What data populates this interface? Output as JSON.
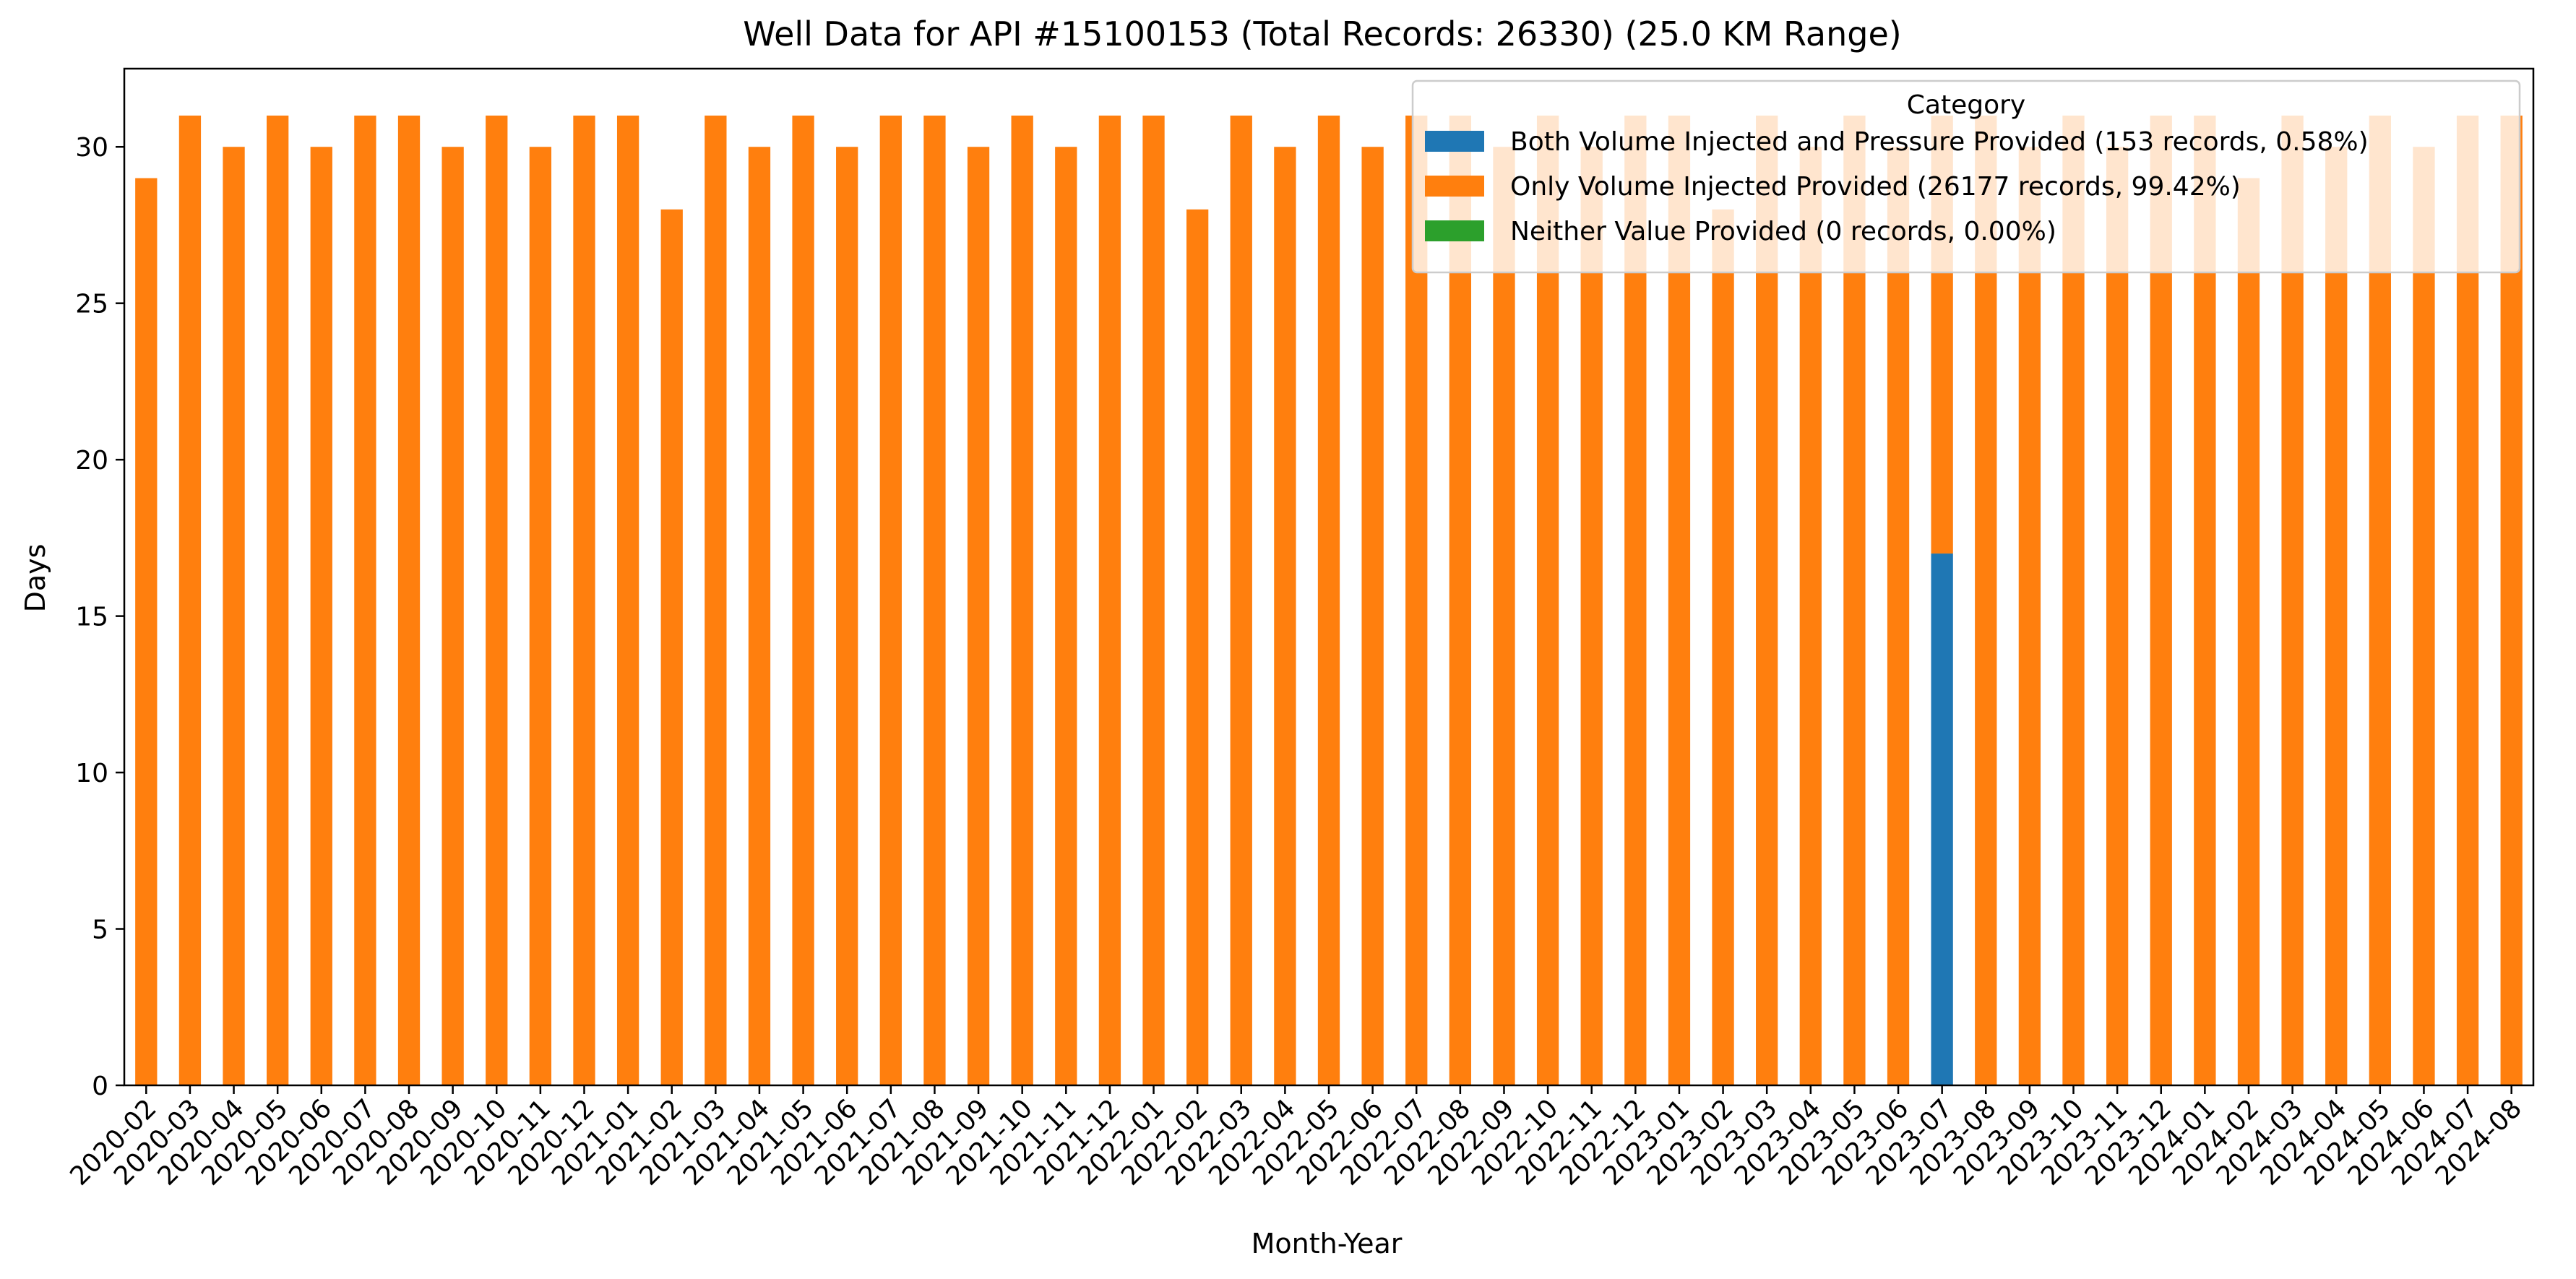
{
  "chart_data": {
    "type": "bar",
    "stacked": true,
    "title": "Well Data for API #15100153 (Total Records: 26330) (25.0 KM Range)",
    "xlabel": "Month-Year",
    "ylabel": "Days",
    "ylim": [
      0,
      32.5
    ],
    "yticks": [
      0,
      5,
      10,
      15,
      20,
      25,
      30
    ],
    "grid": false,
    "legend": {
      "title": "Category",
      "placement": "top-right"
    },
    "categories": [
      "2020-02",
      "2020-03",
      "2020-04",
      "2020-05",
      "2020-06",
      "2020-07",
      "2020-08",
      "2020-09",
      "2020-10",
      "2020-11",
      "2020-12",
      "2021-01",
      "2021-02",
      "2021-03",
      "2021-04",
      "2021-05",
      "2021-06",
      "2021-07",
      "2021-08",
      "2021-09",
      "2021-10",
      "2021-11",
      "2021-12",
      "2022-01",
      "2022-02",
      "2022-03",
      "2022-04",
      "2022-05",
      "2022-06",
      "2022-07",
      "2022-08",
      "2022-09",
      "2022-10",
      "2022-11",
      "2022-12",
      "2023-01",
      "2023-02",
      "2023-03",
      "2023-04",
      "2023-05",
      "2023-06",
      "2023-07",
      "2023-08",
      "2023-09",
      "2023-10",
      "2023-11",
      "2023-12",
      "2024-01",
      "2024-02",
      "2024-03",
      "2024-04",
      "2024-05",
      "2024-06",
      "2024-07",
      "2024-08"
    ],
    "series": [
      {
        "name": "Both Volume Injected and Pressure Provided (153 records, 0.58%)",
        "color": "#1f77b4",
        "values": [
          0,
          0,
          0,
          0,
          0,
          0,
          0,
          0,
          0,
          0,
          0,
          0,
          0,
          0,
          0,
          0,
          0,
          0,
          0,
          0,
          0,
          0,
          0,
          0,
          0,
          0,
          0,
          0,
          0,
          0,
          0,
          0,
          0,
          0,
          0,
          0,
          0,
          0,
          0,
          0,
          0,
          17,
          0,
          0,
          0,
          0,
          0,
          0,
          0,
          0,
          0,
          0,
          0,
          0,
          0
        ]
      },
      {
        "name": "Only Volume Injected Provided (26177 records, 99.42%)",
        "color": "#ff7f0e",
        "values": [
          29,
          31,
          30,
          31,
          30,
          31,
          31,
          30,
          31,
          30,
          31,
          31,
          28,
          31,
          30,
          31,
          30,
          31,
          31,
          30,
          31,
          30,
          31,
          31,
          28,
          31,
          30,
          31,
          30,
          31,
          31,
          30,
          31,
          30,
          31,
          31,
          28,
          31,
          30,
          31,
          30,
          14,
          31,
          30,
          31,
          30,
          31,
          31,
          29,
          31,
          30,
          31,
          30,
          31,
          31
        ]
      },
      {
        "name": "Neither Value Provided (0 records, 0.00%)",
        "color": "#2ca02c",
        "values": [
          0,
          0,
          0,
          0,
          0,
          0,
          0,
          0,
          0,
          0,
          0,
          0,
          0,
          0,
          0,
          0,
          0,
          0,
          0,
          0,
          0,
          0,
          0,
          0,
          0,
          0,
          0,
          0,
          0,
          0,
          0,
          0,
          0,
          0,
          0,
          0,
          0,
          0,
          0,
          0,
          0,
          0,
          0,
          0,
          0,
          0,
          0,
          0,
          0,
          0,
          0,
          0,
          0,
          0,
          0
        ]
      }
    ]
  }
}
